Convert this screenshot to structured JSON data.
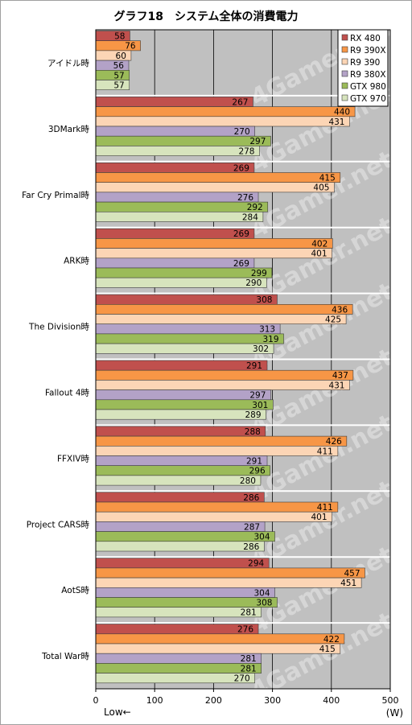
{
  "chart_data": {
    "type": "bar",
    "orientation": "horizontal",
    "title": "グラフ18　システム全体の消費電力",
    "xlabel": "Low←",
    "unit": "(W)",
    "xlim": [
      0,
      500
    ],
    "xticks": [
      0,
      100,
      200,
      300,
      400,
      500
    ],
    "grid": true,
    "legend_position": "top-right",
    "watermark": "4Gamer.net",
    "categories": [
      "アイドル時",
      "3DMark時",
      "Far Cry Primal時",
      "ARK時",
      "The Division時",
      "Fallout 4時",
      "FFXIV時",
      "Project CARS時",
      "AotS時",
      "Total War時"
    ],
    "series": [
      {
        "name": "RX 480",
        "color": "#c0504d",
        "values": [
          58,
          267,
          269,
          269,
          308,
          291,
          288,
          286,
          294,
          276
        ]
      },
      {
        "name": "R9 390X",
        "color": "#f79646",
        "values": [
          76,
          440,
          415,
          402,
          436,
          437,
          426,
          411,
          457,
          422
        ]
      },
      {
        "name": "R9 390",
        "color": "#fcd5b5",
        "values": [
          60,
          431,
          405,
          401,
          425,
          431,
          411,
          401,
          451,
          415
        ]
      },
      {
        "name": "R9 380X",
        "color": "#b3a2c7",
        "values": [
          56,
          270,
          276,
          269,
          313,
          297,
          291,
          287,
          304,
          281
        ]
      },
      {
        "name": "GTX 980",
        "color": "#9bbb59",
        "values": [
          57,
          297,
          292,
          299,
          319,
          301,
          296,
          304,
          308,
          281
        ]
      },
      {
        "name": "GTX 970",
        "color": "#d7e4bd",
        "values": [
          57,
          278,
          284,
          290,
          302,
          289,
          280,
          286,
          281,
          270
        ]
      }
    ]
  }
}
